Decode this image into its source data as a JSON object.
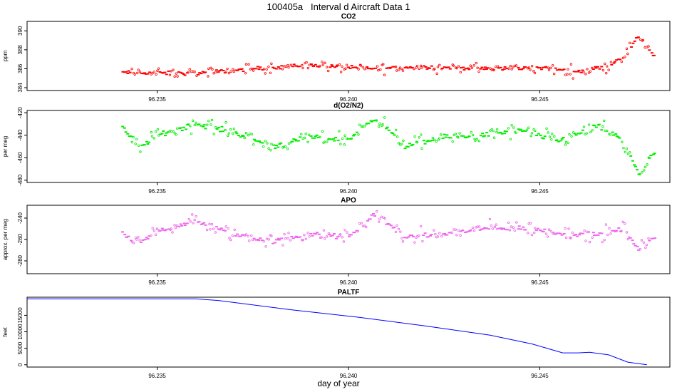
{
  "title": "100405a   Interval d Aircraft Data 1",
  "xlabel": "day of year",
  "chart_data": [
    {
      "type": "scatter",
      "title": "CO2",
      "ylabel": "ppm",
      "xlim": [
        96.2316,
        96.2484
      ],
      "ylim": [
        383.7,
        391.0
      ],
      "xticks": [
        "96.235",
        "96.240",
        "96.245"
      ],
      "yticks": [
        "384",
        "386",
        "388",
        "390"
      ],
      "color": "#ff0000",
      "marker": "open-circle",
      "x_range": [
        96.2341,
        96.248
      ],
      "base_series": [
        [
          96.2341,
          385.6
        ],
        [
          96.236,
          385.5
        ],
        [
          96.2375,
          386.0
        ],
        [
          96.239,
          386.4
        ],
        [
          96.2405,
          386.0
        ],
        [
          96.242,
          386.2
        ],
        [
          96.2435,
          386.0
        ],
        [
          96.245,
          386.1
        ],
        [
          96.246,
          385.7
        ],
        [
          96.2468,
          386.3
        ],
        [
          96.2472,
          387.4
        ],
        [
          96.2476,
          389.5
        ],
        [
          96.248,
          387.3
        ]
      ],
      "spread": 0.6
    },
    {
      "type": "scatter",
      "title": "d(O2/N2)",
      "ylabel": "per meg",
      "xlim": [
        96.2316,
        96.2484
      ],
      "ylim": [
        -482,
        -418
      ],
      "xticks": [
        "96.235",
        "96.240",
        "96.245"
      ],
      "yticks": [
        "-480",
        "-460",
        "-440",
        "-420"
      ],
      "color": "#00ee00",
      "marker": "open-circle",
      "x_range": [
        96.2341,
        96.248
      ],
      "base_series": [
        [
          96.2341,
          -432
        ],
        [
          96.2345,
          -452
        ],
        [
          96.235,
          -440
        ],
        [
          96.236,
          -430
        ],
        [
          96.237,
          -437
        ],
        [
          96.238,
          -450
        ],
        [
          96.239,
          -442
        ],
        [
          96.24,
          -444
        ],
        [
          96.2407,
          -424
        ],
        [
          96.2415,
          -450
        ],
        [
          96.2425,
          -442
        ],
        [
          96.2435,
          -440
        ],
        [
          96.2445,
          -436
        ],
        [
          96.2455,
          -445
        ],
        [
          96.2465,
          -432
        ],
        [
          96.247,
          -440
        ],
        [
          96.2474,
          -460
        ],
        [
          96.2476,
          -475
        ],
        [
          96.248,
          -455
        ]
      ],
      "spread": 7
    },
    {
      "type": "scatter",
      "title": "APO",
      "ylabel": "approx. per meg",
      "xlim": [
        96.2316,
        96.2484
      ],
      "ylim": [
        -292,
        -228
      ],
      "xticks": [
        "96.235",
        "96.240",
        "96.245"
      ],
      "yticks": [
        "-280",
        "-260",
        "-240"
      ],
      "color": "#ee66ee",
      "marker": "open-circle",
      "x_range": [
        96.2341,
        96.248
      ],
      "base_series": [
        [
          96.2341,
          -255
        ],
        [
          96.2345,
          -265
        ],
        [
          96.235,
          -252
        ],
        [
          96.236,
          -243
        ],
        [
          96.237,
          -255
        ],
        [
          96.238,
          -262
        ],
        [
          96.239,
          -255
        ],
        [
          96.24,
          -258
        ],
        [
          96.2407,
          -236
        ],
        [
          96.2415,
          -258
        ],
        [
          96.2425,
          -255
        ],
        [
          96.2435,
          -250
        ],
        [
          96.2445,
          -249
        ],
        [
          96.2455,
          -254
        ],
        [
          96.2465,
          -256
        ],
        [
          96.2472,
          -250
        ],
        [
          96.2476,
          -270
        ],
        [
          96.248,
          -258
        ]
      ],
      "spread": 7
    },
    {
      "type": "line",
      "title": "PALTF",
      "ylabel": "feet",
      "xlim": [
        96.2316,
        96.2484
      ],
      "ylim": [
        -700,
        20500
      ],
      "xticks": [
        "96.235",
        "96.240",
        "96.245"
      ],
      "yticks": [
        "0",
        "5000",
        "10000",
        "15000"
      ],
      "color": "#0000ff",
      "series": [
        {
          "x": [
            96.2316,
            96.236,
            96.2366,
            96.2385,
            96.2402,
            96.242,
            96.2437,
            96.2448,
            96.2456,
            96.246,
            96.2463,
            96.2468,
            96.2473,
            96.2478
          ],
          "y": [
            20000,
            20000,
            19500,
            16700,
            14500,
            11800,
            9000,
            6300,
            3600,
            3600,
            3800,
            3000,
            800,
            0
          ]
        }
      ]
    }
  ]
}
